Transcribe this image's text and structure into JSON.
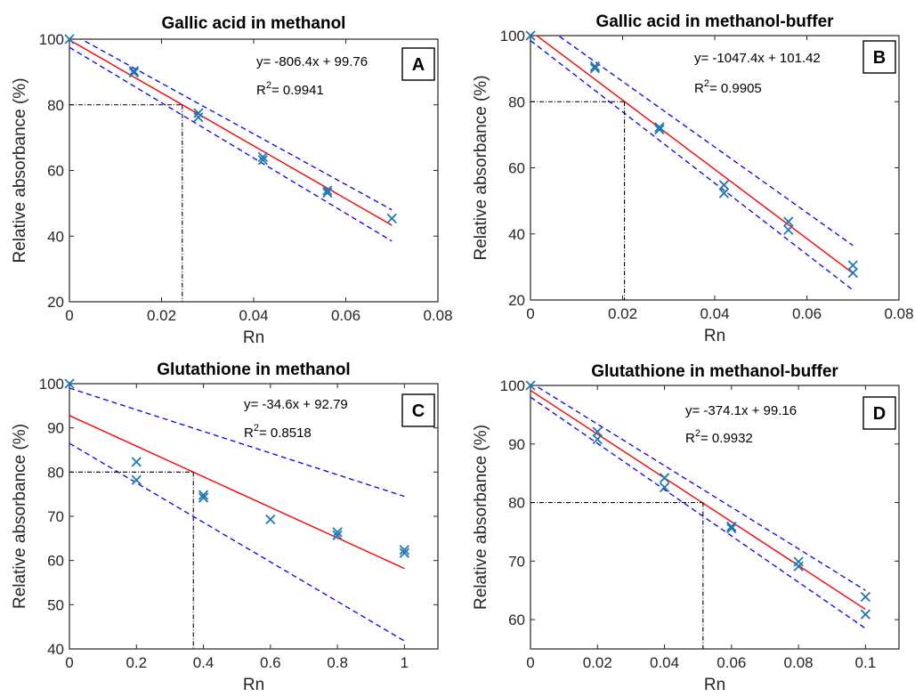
{
  "colors": {
    "data": "#1f77b4",
    "fit": "#ff0000",
    "band": "#0000ff",
    "guide": "#000000"
  },
  "chart_data": [
    {
      "type": "scatter",
      "panel": "A",
      "title": "Gallic acid in methanol",
      "xlabel": "Rn",
      "ylabel": "Relative absorbance (%)",
      "xlim": [
        0,
        0.08
      ],
      "ylim": [
        20,
        100
      ],
      "xticks": [
        0,
        0.02,
        0.04,
        0.06,
        0.08
      ],
      "xtick_labels": [
        "0",
        "0.02",
        "0.04",
        "0.06",
        "0.08"
      ],
      "yticks": [
        20,
        40,
        60,
        80,
        100
      ],
      "ytick_labels": [
        "20",
        "40",
        "60",
        "80",
        "100"
      ],
      "equation": "y= -806.4x + 99.76",
      "r2_label": "R",
      "r2_sup": "2",
      "r2_value": "= 0.9941",
      "points": [
        [
          0,
          100
        ],
        [
          0.014,
          90.3
        ],
        [
          0.014,
          89.8
        ],
        [
          0.028,
          77.5
        ],
        [
          0.028,
          76.2
        ],
        [
          0.042,
          64.1
        ],
        [
          0.042,
          63.2
        ],
        [
          0.056,
          53.9
        ],
        [
          0.056,
          53.2
        ],
        [
          0.07,
          45.4
        ]
      ],
      "fit": {
        "x": [
          0,
          0.07
        ],
        "y": [
          99.76,
          43.31
        ]
      },
      "band_upper": {
        "x": [
          0,
          0.07
        ],
        "y": [
          102,
          48
        ]
      },
      "band_lower": {
        "x": [
          0,
          0.07
        ],
        "y": [
          97.5,
          38.5
        ]
      },
      "guide": {
        "x": 0.0245,
        "y": 80
      }
    },
    {
      "type": "scatter",
      "panel": "B",
      "title": "Gallic acid in methanol-buffer",
      "xlabel": "Rn",
      "ylabel": "Relative absorbance (%)",
      "xlim": [
        0,
        0.08
      ],
      "ylim": [
        20,
        100
      ],
      "xticks": [
        0,
        0.02,
        0.04,
        0.06,
        0.08
      ],
      "xtick_labels": [
        "0",
        "0.02",
        "0.04",
        "0.06",
        "0.08"
      ],
      "yticks": [
        20,
        40,
        60,
        80,
        100
      ],
      "ytick_labels": [
        "20",
        "40",
        "60",
        "80",
        "100"
      ],
      "equation": "y= -1047.4x + 101.42",
      "r2_label": "R",
      "r2_sup": "2",
      "r2_value": "= 0.9905",
      "points": [
        [
          0,
          100
        ],
        [
          0.014,
          90.7
        ],
        [
          0.014,
          90.1
        ],
        [
          0.028,
          72.3
        ],
        [
          0.028,
          71.6
        ],
        [
          0.042,
          54.8
        ],
        [
          0.042,
          52.3
        ],
        [
          0.056,
          43.7
        ],
        [
          0.056,
          41.2
        ],
        [
          0.07,
          30.5
        ],
        [
          0.07,
          28.2
        ]
      ],
      "fit": {
        "x": [
          0,
          0.07
        ],
        "y": [
          101.42,
          28.1
        ]
      },
      "band_upper": {
        "x": [
          0,
          0.07
        ],
        "y": [
          106,
          36.5
        ]
      },
      "band_lower": {
        "x": [
          0,
          0.07
        ],
        "y": [
          98.5,
          23
        ]
      },
      "guide": {
        "x": 0.0204,
        "y": 80
      }
    },
    {
      "type": "scatter",
      "panel": "C",
      "title": "Glutathione in methanol",
      "xlabel": "Rn",
      "ylabel": "Relative absorbance (%)",
      "xlim": [
        0,
        1.1
      ],
      "ylim": [
        40,
        100
      ],
      "xticks": [
        0,
        0.2,
        0.4,
        0.6,
        0.8,
        1
      ],
      "xtick_labels": [
        "0",
        "0.2",
        "0.4",
        "0.6",
        "0.8",
        "1"
      ],
      "yticks": [
        40,
        50,
        60,
        70,
        80,
        90,
        100
      ],
      "ytick_labels": [
        "40",
        "50",
        "60",
        "70",
        "80",
        "90",
        "100"
      ],
      "equation": "y= -34.6x + 92.79",
      "r2_label": "R",
      "r2_sup": "2",
      "r2_value": "= 0.8518",
      "points": [
        [
          0,
          100
        ],
        [
          0.2,
          82.3
        ],
        [
          0.2,
          78.2
        ],
        [
          0.4,
          74.8
        ],
        [
          0.4,
          74.2
        ],
        [
          0.6,
          69.3
        ],
        [
          0.8,
          66.4
        ],
        [
          0.8,
          65.7
        ],
        [
          1,
          62.4
        ],
        [
          1,
          61.7
        ]
      ],
      "fit": {
        "x": [
          0,
          1
        ],
        "y": [
          92.79,
          58.19
        ]
      },
      "band_upper": {
        "x": [
          0,
          1
        ],
        "y": [
          99,
          74.5
        ]
      },
      "band_lower": {
        "x": [
          0,
          1
        ],
        "y": [
          86.5,
          41.8
        ]
      },
      "guide": {
        "x": 0.37,
        "y": 80
      }
    },
    {
      "type": "scatter",
      "panel": "D",
      "title": "Glutathione in methanol-buffer",
      "xlabel": "Rn",
      "ylabel": "Relative absorbance (%)",
      "xlim": [
        0,
        0.11
      ],
      "ylim": [
        55,
        100
      ],
      "xticks": [
        0,
        0.02,
        0.04,
        0.06,
        0.08,
        0.1
      ],
      "xtick_labels": [
        "0",
        "0.02",
        "0.04",
        "0.06",
        "0.08",
        "0.1"
      ],
      "yticks": [
        60,
        70,
        80,
        90,
        100
      ],
      "ytick_labels": [
        "60",
        "70",
        "80",
        "90",
        "100"
      ],
      "equation": "y= -374.1x + 99.16",
      "r2_label": "R",
      "r2_sup": "2",
      "r2_value": "= 0.9932",
      "points": [
        [
          0,
          100
        ],
        [
          0.02,
          92.1
        ],
        [
          0.02,
          90.8
        ],
        [
          0.04,
          84.2
        ],
        [
          0.04,
          82.6
        ],
        [
          0.06,
          75.9
        ],
        [
          0.06,
          75.6
        ],
        [
          0.08,
          69.9
        ],
        [
          0.08,
          69.1
        ],
        [
          0.1,
          63.9
        ],
        [
          0.1,
          60.9
        ]
      ],
      "fit": {
        "x": [
          0,
          0.1
        ],
        "y": [
          99.16,
          61.75
        ]
      },
      "band_upper": {
        "x": [
          0,
          0.1
        ],
        "y": [
          100.5,
          65
        ]
      },
      "band_lower": {
        "x": [
          0,
          0.1
        ],
        "y": [
          98,
          58.5
        ]
      },
      "guide": {
        "x": 0.0515,
        "y": 80
      }
    }
  ]
}
